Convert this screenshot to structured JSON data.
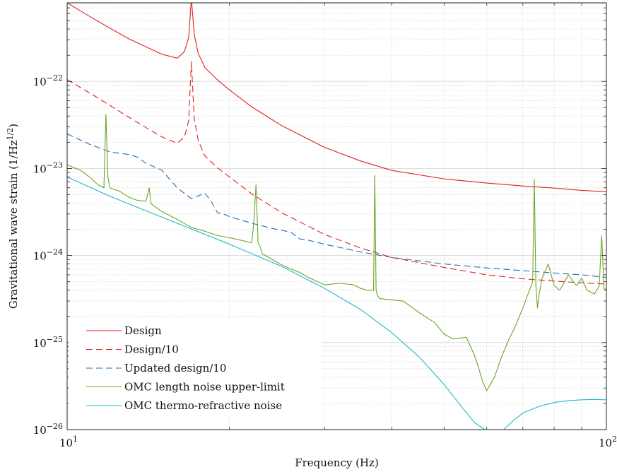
{
  "chart_data": {
    "type": "line",
    "title": "",
    "xlabel": "Frequency (Hz)",
    "ylabel": "Gravitational wave strain (1/Hz",
    "ylabel_exponent": "1/2",
    "ylabel_close": ")",
    "x_scale": "log",
    "y_scale": "log",
    "xlim": [
      10,
      100
    ],
    "ylim": [
      1e-26,
      8e-22
    ],
    "grid": true,
    "legend_position": "bottom-left",
    "x_ticks": [
      {
        "value": 10,
        "base": "10",
        "exp": "1"
      },
      {
        "value": 100,
        "base": "10",
        "exp": "2"
      }
    ],
    "y_ticks": [
      {
        "value": 1e-26,
        "base": "10",
        "exp": "−26"
      },
      {
        "value": 1e-25,
        "base": "10",
        "exp": "−25"
      },
      {
        "value": 1e-24,
        "base": "10",
        "exp": "−24"
      },
      {
        "value": 1e-23,
        "base": "10",
        "exp": "−23"
      },
      {
        "value": 1e-22,
        "base": "10",
        "exp": "−22"
      }
    ],
    "series": [
      {
        "name": "Design",
        "color": "#e02020",
        "dash": "solid",
        "x": [
          10,
          11,
          12,
          13,
          14,
          15,
          16,
          16.5,
          16.8,
          17.0,
          17.2,
          17.5,
          18,
          19,
          20,
          22,
          25,
          30,
          35,
          40,
          50,
          60,
          70,
          80,
          90,
          100
        ],
        "y": [
          8e-22,
          5.6e-22,
          4.1e-22,
          3.1e-22,
          2.5e-22,
          2.05e-22,
          1.85e-22,
          2.2e-22,
          3.2e-22,
          9e-22,
          3.5e-22,
          2.1e-22,
          1.45e-22,
          1.04e-22,
          8e-23,
          5.1e-23,
          3.1e-23,
          1.75e-23,
          1.22e-23,
          9.5e-24,
          7.6e-24,
          6.8e-24,
          6.3e-24,
          5.95e-24,
          5.6e-24,
          5.4e-24
        ]
      },
      {
        "name": "Design/10",
        "color": "#e02020",
        "dash": "dashed",
        "x": [
          10,
          11,
          12,
          13,
          14,
          15,
          16,
          16.5,
          16.8,
          17.0,
          17.2,
          17.5,
          18,
          19,
          20,
          22,
          25,
          30,
          35,
          40,
          50,
          60,
          70,
          80,
          90,
          100
        ],
        "y": [
          1.05e-22,
          7.4e-23,
          5.3e-23,
          3.9e-23,
          2.95e-23,
          2.3e-23,
          1.95e-23,
          2.3e-23,
          3.5e-23,
          1.7e-22,
          3.8e-23,
          2.1e-23,
          1.4e-23,
          1.02e-23,
          8e-24,
          5.1e-24,
          3.1e-24,
          1.75e-24,
          1.22e-24,
          9.5e-25,
          7.3e-25,
          6e-25,
          5.4e-25,
          5.1e-25,
          4.85e-25,
          4.7e-25
        ]
      },
      {
        "name": "Updated design/10",
        "color": "#1f6fb5",
        "dash": "dashed",
        "x": [
          10,
          11,
          12,
          13,
          13.5,
          14,
          15,
          15.5,
          16,
          17,
          18,
          18.5,
          19,
          19.5,
          20,
          22,
          24,
          26,
          27,
          28,
          30,
          35,
          40,
          50,
          60,
          70,
          80,
          90,
          100
        ],
        "y": [
          2.5e-23,
          1.9e-23,
          1.55e-23,
          1.45e-23,
          1.35e-23,
          1.15e-23,
          9.5e-24,
          7.5e-24,
          6e-24,
          4.5e-24,
          5.2e-24,
          4.2e-24,
          3.1e-24,
          3e-24,
          2.8e-24,
          2.35e-24,
          2.05e-24,
          1.85e-24,
          1.55e-24,
          1.5e-24,
          1.35e-24,
          1.1e-24,
          9.5e-25,
          8e-25,
          7.2e-25,
          6.7e-25,
          6.3e-25,
          6e-25,
          5.6e-25
        ]
      },
      {
        "name": "OMC length noise upper-limit",
        "color": "#6aa628",
        "dash": "solid",
        "x": [
          10,
          10.6,
          11,
          11.4,
          11.7,
          11.8,
          11.9,
          12,
          12.5,
          13,
          13.5,
          14,
          14.2,
          14.3,
          14.4,
          15,
          16,
          17,
          18,
          19,
          20,
          21,
          22,
          22.2,
          22.4,
          22.6,
          22.8,
          23,
          24,
          25,
          26,
          27,
          28,
          30,
          32,
          34,
          35,
          36,
          37,
          37.2,
          37.4,
          37.6,
          38,
          40,
          42,
          45,
          48,
          50,
          52,
          55,
          57,
          58,
          59,
          60,
          62,
          64,
          66,
          68,
          70,
          72,
          73,
          73.5,
          74,
          74.5,
          75,
          76,
          78,
          80,
          82,
          85,
          88,
          90,
          92,
          95,
          97,
          98,
          99,
          100
        ],
        "y": [
          1.1e-23,
          9.5e-24,
          8e-24,
          6.5e-24,
          6e-24,
          4.2e-23,
          8e-24,
          6e-24,
          5.5e-24,
          4.7e-24,
          4.3e-24,
          4.2e-24,
          6e-24,
          4e-24,
          3.8e-24,
          3.2e-24,
          2.6e-24,
          2.1e-24,
          1.9e-24,
          1.7e-24,
          1.6e-24,
          1.5e-24,
          1.4e-24,
          2.5e-24,
          6.5e-24,
          1.4e-24,
          1.25e-24,
          1.05e-24,
          9e-25,
          7.8e-25,
          7e-25,
          6.4e-25,
          5.6e-25,
          4.6e-25,
          4.8e-25,
          4.6e-25,
          4.2e-25,
          4e-25,
          4e-25,
          8.3e-24,
          4e-25,
          3.5e-25,
          3.2e-25,
          3.1e-25,
          3e-25,
          2.2e-25,
          1.7e-25,
          1.25e-25,
          1.1e-25,
          1.15e-25,
          7e-26,
          5e-26,
          3.5e-26,
          2.8e-26,
          4e-26,
          7e-26,
          1.1e-25,
          1.6e-25,
          2.5e-25,
          4e-25,
          5e-25,
          7.5e-24,
          4.5e-25,
          2.5e-25,
          3.5e-25,
          5.5e-25,
          8e-25,
          4.5e-25,
          4e-25,
          6e-25,
          4.5e-25,
          5.5e-25,
          4e-25,
          3.6e-25,
          4.5e-25,
          1.7e-24,
          4.2e-25,
          4e-25
        ]
      },
      {
        "name": "OMC thermo-refractive noise",
        "color": "#21b8c8",
        "dash": "solid",
        "x": [
          10,
          12,
          15,
          20,
          25,
          30,
          35,
          40,
          45,
          50,
          54,
          57,
          59.5,
          64.5,
          67,
          70,
          75,
          80,
          85,
          90,
          95,
          100
        ],
        "y": [
          8e-24,
          4.8e-24,
          2.75e-24,
          1.35e-24,
          7.5e-25,
          4.2e-25,
          2.4e-25,
          1.3e-25,
          6.8e-26,
          3.3e-26,
          1.8e-26,
          1.2e-26,
          1e-26,
          1e-26,
          1.25e-26,
          1.55e-26,
          1.85e-26,
          2.05e-26,
          2.15e-26,
          2.2e-26,
          2.22e-26,
          2.2e-26
        ]
      }
    ]
  }
}
